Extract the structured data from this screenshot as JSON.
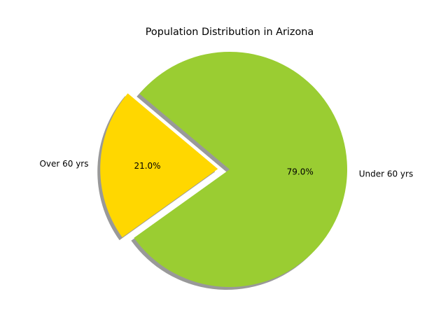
{
  "chart_data": {
    "type": "pie",
    "title": "Population Distribution in Arizona",
    "slices": [
      {
        "label": "Over 60 yrs",
        "value": 21.0,
        "pct_label": "21.0%",
        "color": "#ffd700",
        "exploded": true
      },
      {
        "label": "Under 60 yrs",
        "value": 79.0,
        "pct_label": "79.0%",
        "color": "#9acd32",
        "exploded": false
      }
    ],
    "start_angle": 140,
    "shadow": true,
    "shadow_color": "#000000"
  }
}
